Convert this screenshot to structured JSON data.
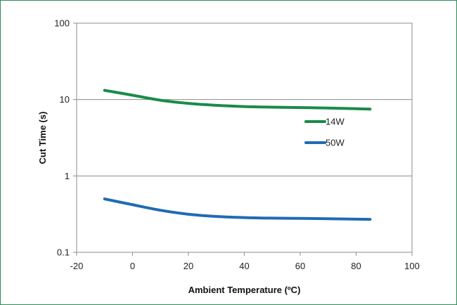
{
  "chart_data": {
    "type": "line",
    "title": "",
    "xlabel": "Ambient Temperature (ºC)",
    "ylabel": "Cut Time (s)",
    "xlim": [
      -20,
      100
    ],
    "ylim": [
      0.1,
      100
    ],
    "yscale": "log",
    "grid": "horizontal",
    "legend": "right",
    "x_ticks": [
      -20,
      0,
      20,
      40,
      60,
      80,
      100
    ],
    "x_tick_labels": [
      "-20",
      "0",
      "20",
      "40",
      "60",
      "80",
      "100"
    ],
    "y_ticks": [
      0.1,
      1,
      10,
      100
    ],
    "y_tick_labels": [
      "0.1",
      "1",
      "10",
      "100"
    ],
    "series": [
      {
        "name": "14W",
        "color": "#1a8a4a",
        "x": [
          -10,
          0,
          10,
          20,
          30,
          40,
          50,
          60,
          70,
          85
        ],
        "y": [
          13.2,
          11.4,
          9.8,
          8.9,
          8.4,
          8.1,
          7.95,
          7.85,
          7.75,
          7.5
        ]
      },
      {
        "name": "50W",
        "color": "#1f6bb5",
        "x": [
          -10,
          0,
          10,
          20,
          30,
          40,
          50,
          60,
          70,
          85
        ],
        "y": [
          0.5,
          0.42,
          0.355,
          0.315,
          0.295,
          0.285,
          0.28,
          0.278,
          0.275,
          0.27
        ]
      }
    ]
  }
}
